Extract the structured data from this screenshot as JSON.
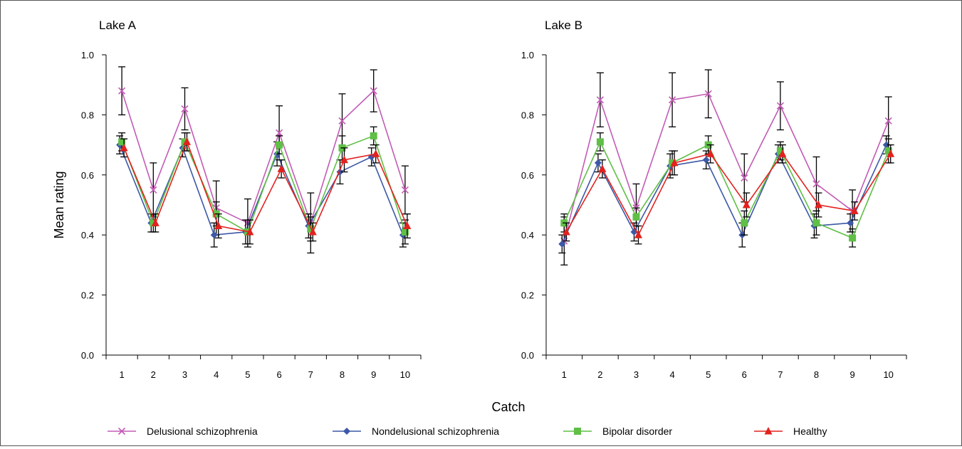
{
  "chart_data": [
    {
      "type": "line",
      "title": "Lake A",
      "xlabel": "Catch",
      "ylabel": "Mean rating",
      "x": [
        1,
        2,
        3,
        4,
        5,
        6,
        7,
        8,
        9,
        10
      ],
      "ylim": [
        0,
        1
      ],
      "yticks": [
        "0.0",
        "0.2",
        "0.4",
        "0.6",
        "0.8",
        "1.0"
      ],
      "grid": false,
      "series": [
        {
          "name": "Delusional schizophrenia",
          "color": "#c35bb5",
          "marker": "cross",
          "values": [
            0.88,
            0.55,
            0.82,
            0.49,
            0.44,
            0.74,
            0.44,
            0.78,
            0.88,
            0.55
          ],
          "error": [
            0.08,
            0.09,
            0.07,
            0.09,
            0.08,
            0.09,
            0.1,
            0.09,
            0.07,
            0.08
          ]
        },
        {
          "name": "Nondelusional schizophrenia",
          "color": "#3c58a6",
          "marker": "diamond",
          "values": [
            0.7,
            0.44,
            0.69,
            0.4,
            0.41,
            0.67,
            0.43,
            0.61,
            0.66,
            0.4
          ],
          "error": [
            0.03,
            0.03,
            0.03,
            0.04,
            0.04,
            0.04,
            0.04,
            0.04,
            0.03,
            0.04
          ]
        },
        {
          "name": "Bipolar disorder",
          "color": "#5fbf46",
          "marker": "square",
          "values": [
            0.71,
            0.44,
            0.71,
            0.47,
            0.41,
            0.7,
            0.42,
            0.69,
            0.73,
            0.41
          ],
          "error": [
            0.03,
            0.03,
            0.03,
            0.04,
            0.04,
            0.03,
            0.04,
            0.04,
            0.03,
            0.04
          ]
        },
        {
          "name": "Healthy",
          "color": "#e3211e",
          "marker": "triangle",
          "values": [
            0.69,
            0.44,
            0.71,
            0.43,
            0.41,
            0.62,
            0.41,
            0.65,
            0.67,
            0.43
          ],
          "error": [
            0.03,
            0.03,
            0.03,
            0.04,
            0.04,
            0.03,
            0.03,
            0.04,
            0.03,
            0.04
          ]
        }
      ]
    },
    {
      "type": "line",
      "title": "Lake B",
      "xlabel": "Catch",
      "ylabel": "",
      "x": [
        1,
        2,
        3,
        4,
        5,
        6,
        7,
        8,
        9,
        10
      ],
      "ylim": [
        0,
        1
      ],
      "yticks": [
        "0.0",
        "0.2",
        "0.4",
        "0.6",
        "0.8",
        "1.0"
      ],
      "grid": false,
      "series": [
        {
          "name": "Delusional schizophrenia",
          "color": "#c35bb5",
          "marker": "cross",
          "values": [
            0.38,
            0.85,
            0.49,
            0.85,
            0.87,
            0.59,
            0.83,
            0.57,
            0.48,
            0.78
          ],
          "error": [
            0.08,
            0.09,
            0.08,
            0.09,
            0.08,
            0.08,
            0.08,
            0.09,
            0.07,
            0.08
          ]
        },
        {
          "name": "Nondelusional schizophrenia",
          "color": "#3c58a6",
          "marker": "diamond",
          "values": [
            0.37,
            0.64,
            0.41,
            0.63,
            0.65,
            0.4,
            0.67,
            0.43,
            0.44,
            0.7
          ],
          "error": [
            0.03,
            0.03,
            0.03,
            0.04,
            0.03,
            0.04,
            0.03,
            0.04,
            0.03,
            0.03
          ]
        },
        {
          "name": "Bipolar disorder",
          "color": "#5fbf46",
          "marker": "square",
          "values": [
            0.44,
            0.71,
            0.46,
            0.64,
            0.7,
            0.44,
            0.68,
            0.44,
            0.39,
            0.68
          ],
          "error": [
            0.03,
            0.03,
            0.03,
            0.04,
            0.03,
            0.04,
            0.03,
            0.04,
            0.03,
            0.04
          ]
        },
        {
          "name": "Healthy",
          "color": "#e3211e",
          "marker": "triangle",
          "values": [
            0.41,
            0.62,
            0.4,
            0.64,
            0.67,
            0.5,
            0.67,
            0.5,
            0.48,
            0.67
          ],
          "error": [
            0.03,
            0.03,
            0.03,
            0.04,
            0.03,
            0.04,
            0.03,
            0.04,
            0.03,
            0.03
          ]
        }
      ]
    }
  ],
  "shared_xlabel": "Catch",
  "legend": {
    "placement": "bottom",
    "entries": [
      {
        "label": "Delusional schizophrenia",
        "color": "#c35bb5",
        "marker": "cross"
      },
      {
        "label": "Nondelusional schizophrenia",
        "color": "#3c58a6",
        "marker": "diamond"
      },
      {
        "label": "Bipolar disorder",
        "color": "#5fbf46",
        "marker": "square"
      },
      {
        "label": "Healthy",
        "color": "#e3211e",
        "marker": "triangle"
      }
    ]
  }
}
